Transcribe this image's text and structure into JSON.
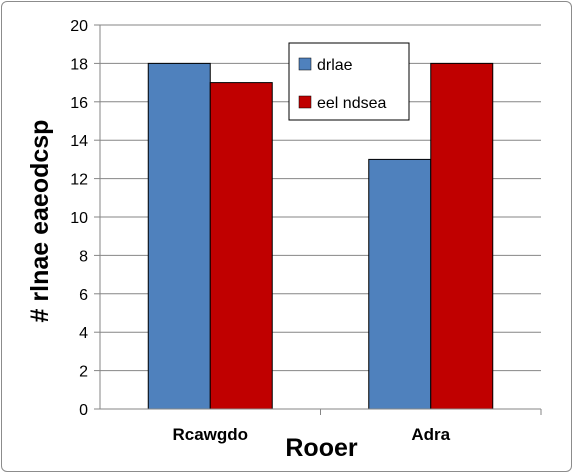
{
  "chart_data": {
    "type": "bar",
    "categories": [
      "Rcawgdo",
      "Adra"
    ],
    "series": [
      {
        "name": "drlae",
        "values": [
          18,
          13
        ],
        "color": "#4f81bd"
      },
      {
        "name": "eel ndsea",
        "values": [
          17,
          18
        ],
        "color": "#c00000"
      }
    ],
    "xlabel": "Rooer",
    "ylabel": "# rlnae eaeodcsp",
    "ylim": [
      0,
      20
    ],
    "yticks": [
      0,
      2,
      4,
      6,
      8,
      10,
      12,
      14,
      16,
      18,
      20
    ],
    "grid": true,
    "legend_position": "top-center"
  }
}
